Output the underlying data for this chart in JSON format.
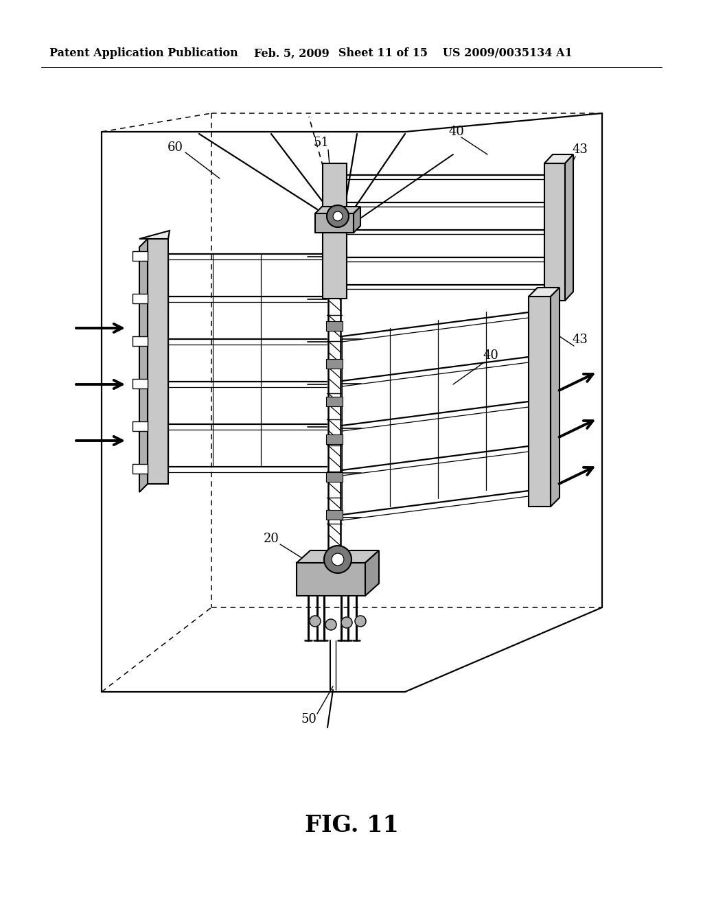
{
  "header_left": "Patent Application Publication",
  "header_date": "Feb. 5, 2009",
  "header_sheet": "Sheet 11 of 15",
  "header_patent": "US 2009/0035134 A1",
  "fig_label": "FIG. 11",
  "bg": "#ffffff",
  "fg": "#000000",
  "hfs": 11.5,
  "figfs": 24,
  "labelfs": 13,
  "gray1": "#c8c8c8",
  "gray2": "#b0b0b0",
  "gray3": "#989898"
}
